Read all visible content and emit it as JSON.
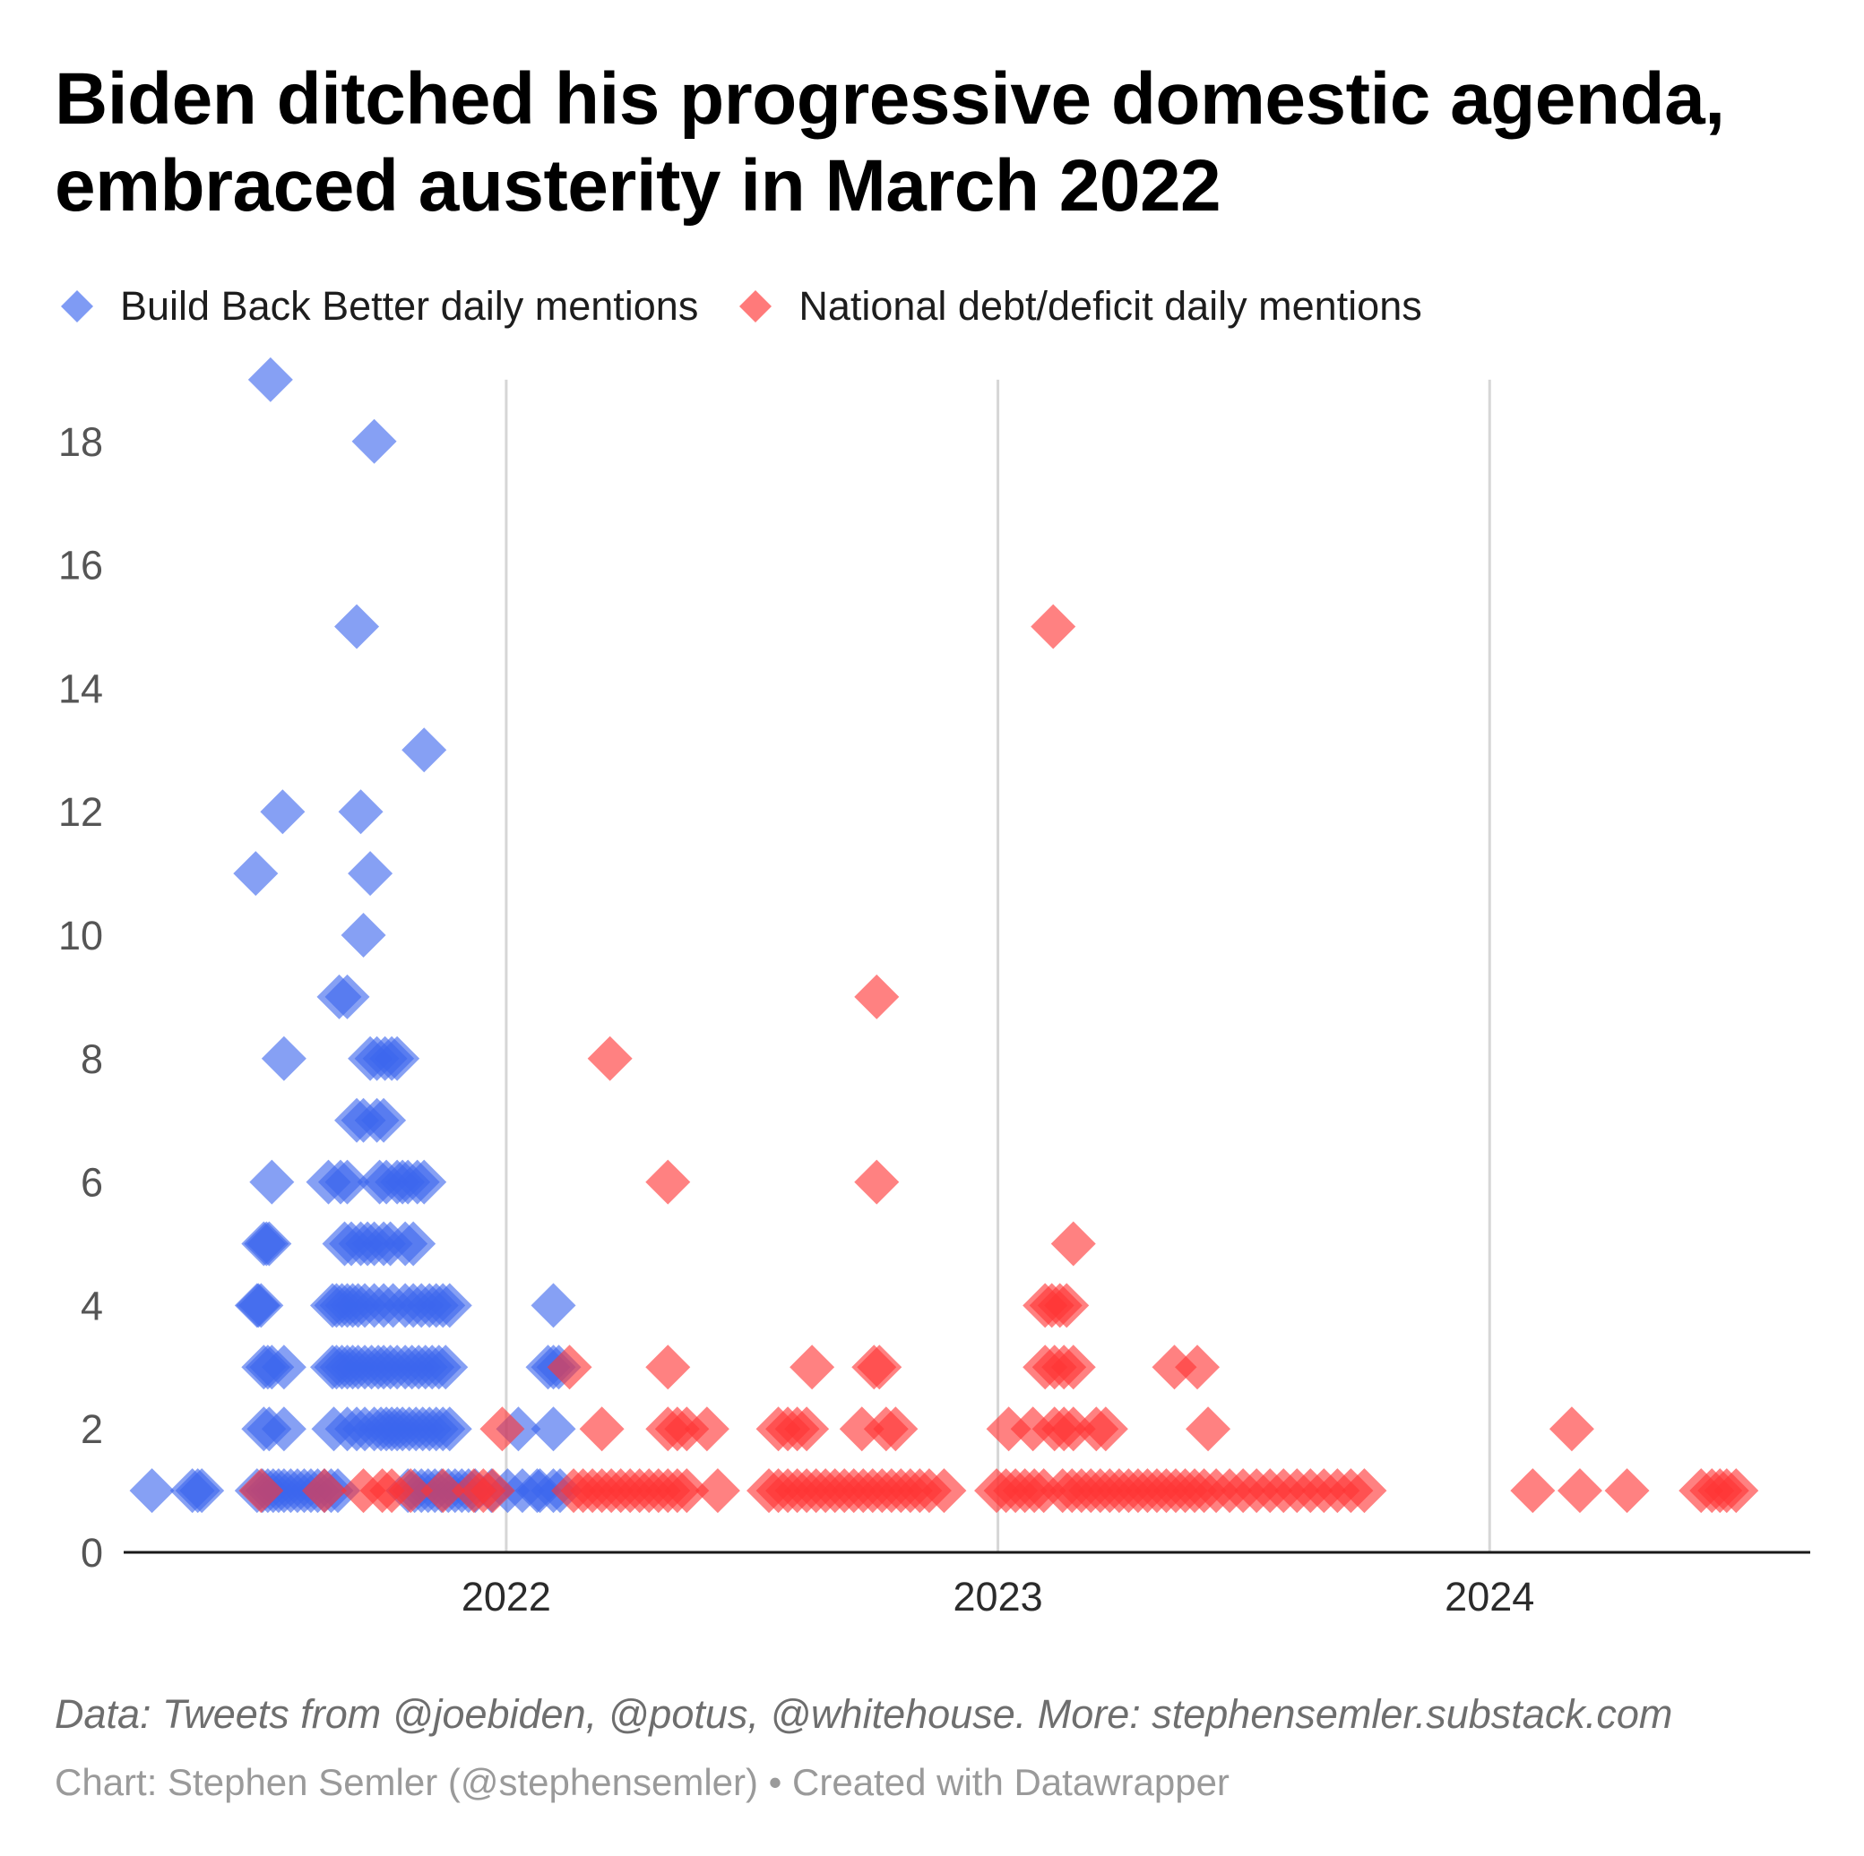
{
  "title": "Biden ditched his progressive domestic agenda, embraced austerity in March 2022",
  "legend": [
    {
      "label": "Build Back Better daily mentions",
      "color": "#3b66ee"
    },
    {
      "label": "National debt/deficit daily mentions",
      "color": "#ff3333"
    }
  ],
  "footer": {
    "source": "Data: Tweets from @joebiden, @potus, @whitehouse. More: stephensemler.substack.com",
    "credit": "Chart: Stephen Semler (@stephensemler) • Created with Datawrapper"
  },
  "chart_data": {
    "type": "scatter",
    "title": "Biden ditched his progressive domestic agenda, embraced austerity in March 2022",
    "xlabel": "",
    "ylabel": "",
    "x_type": "date",
    "xlim": [
      "2021-03-23",
      "2024-08-26"
    ],
    "ylim": [
      0,
      19
    ],
    "x_ticks": [
      "2022",
      "2023",
      "2024"
    ],
    "x_tick_dates": [
      "2022-01-01",
      "2023-01-01",
      "2024-01-01"
    ],
    "y_ticks": [
      "0",
      "2",
      "4",
      "6",
      "8",
      "10",
      "12",
      "14",
      "16",
      "18"
    ],
    "y_tick_values": [
      0,
      2,
      4,
      6,
      8,
      10,
      12,
      14,
      16,
      18
    ],
    "grid": "vertical lines at year boundaries",
    "legend_position": "top-left",
    "marker": "diamond",
    "series": [
      {
        "name": "Build Back Better daily mentions",
        "color": "#3b66ee",
        "points": [
          [
            "2021-04-13",
            1
          ],
          [
            "2021-05-13",
            1
          ],
          [
            "2021-05-17",
            1
          ],
          [
            "2021-05-20",
            1
          ],
          [
            "2021-06-29",
            11
          ],
          [
            "2021-06-30",
            4
          ],
          [
            "2021-07-01",
            4
          ],
          [
            "2021-07-03",
            4
          ],
          [
            "2021-07-05",
            5
          ],
          [
            "2021-07-07",
            5
          ],
          [
            "2021-07-09",
            5
          ],
          [
            "2021-07-05",
            3
          ],
          [
            "2021-07-08",
            3
          ],
          [
            "2021-07-11",
            3
          ],
          [
            "2021-07-05",
            2
          ],
          [
            "2021-07-09",
            2
          ],
          [
            "2021-07-10",
            19
          ],
          [
            "2021-07-11",
            6
          ],
          [
            "2021-06-30",
            1
          ],
          [
            "2021-07-04",
            1
          ],
          [
            "2021-07-08",
            1
          ],
          [
            "2021-07-12",
            1
          ],
          [
            "2021-07-16",
            1
          ],
          [
            "2021-07-20",
            1
          ],
          [
            "2021-07-19",
            12
          ],
          [
            "2021-07-20",
            3
          ],
          [
            "2021-07-20",
            2
          ],
          [
            "2021-07-20",
            8
          ],
          [
            "2021-07-25",
            1
          ],
          [
            "2021-07-30",
            1
          ],
          [
            "2021-08-04",
            1
          ],
          [
            "2021-08-09",
            1
          ],
          [
            "2021-08-14",
            1
          ],
          [
            "2021-08-19",
            1
          ],
          [
            "2021-08-24",
            1
          ],
          [
            "2021-08-29",
            1
          ],
          [
            "2021-08-22",
            6
          ],
          [
            "2021-08-25",
            4
          ],
          [
            "2021-08-28",
            4
          ],
          [
            "2021-08-25",
            3
          ],
          [
            "2021-08-28",
            3
          ],
          [
            "2021-08-26",
            2
          ],
          [
            "2021-08-30",
            9
          ],
          [
            "2021-09-05",
            9
          ],
          [
            "2021-08-31",
            6
          ],
          [
            "2021-09-05",
            6
          ],
          [
            "2021-09-03",
            5
          ],
          [
            "2021-09-08",
            5
          ],
          [
            "2021-09-01",
            4
          ],
          [
            "2021-09-05",
            4
          ],
          [
            "2021-09-09",
            4
          ],
          [
            "2021-09-13",
            4
          ],
          [
            "2021-09-01",
            3
          ],
          [
            "2021-09-05",
            3
          ],
          [
            "2021-09-09",
            3
          ],
          [
            "2021-09-13",
            3
          ],
          [
            "2021-09-05",
            2
          ],
          [
            "2021-09-12",
            2
          ],
          [
            "2021-09-12",
            15
          ],
          [
            "2021-09-12",
            7
          ],
          [
            "2021-09-17",
            7
          ],
          [
            "2021-09-15",
            12
          ],
          [
            "2021-09-17",
            10
          ],
          [
            "2021-09-22",
            11
          ],
          [
            "2021-09-15",
            5
          ],
          [
            "2021-09-20",
            5
          ],
          [
            "2021-09-25",
            5
          ],
          [
            "2021-09-18",
            4
          ],
          [
            "2021-09-25",
            4
          ],
          [
            "2021-09-18",
            3
          ],
          [
            "2021-09-23",
            3
          ],
          [
            "2021-09-28",
            3
          ],
          [
            "2021-09-18",
            2
          ],
          [
            "2021-09-25",
            2
          ],
          [
            "2021-09-22",
            8
          ],
          [
            "2021-09-27",
            8
          ],
          [
            "2021-09-25",
            18
          ],
          [
            "2021-09-27",
            7
          ],
          [
            "2021-10-02",
            7
          ],
          [
            "2021-09-29",
            6
          ],
          [
            "2021-10-04",
            6
          ],
          [
            "2021-10-02",
            5
          ],
          [
            "2021-10-07",
            5
          ],
          [
            "2021-10-02",
            4
          ],
          [
            "2021-10-09",
            4
          ],
          [
            "2021-10-02",
            3
          ],
          [
            "2021-10-07",
            3
          ],
          [
            "2021-10-12",
            3
          ],
          [
            "2021-09-30",
            2
          ],
          [
            "2021-10-04",
            2
          ],
          [
            "2021-10-08",
            2
          ],
          [
            "2021-10-12",
            2
          ],
          [
            "2021-10-03",
            8
          ],
          [
            "2021-10-08",
            8
          ],
          [
            "2021-10-12",
            8
          ],
          [
            "2021-10-12",
            6
          ],
          [
            "2021-10-16",
            6
          ],
          [
            "2021-10-20",
            6
          ],
          [
            "2021-10-18",
            5
          ],
          [
            "2021-10-24",
            5
          ],
          [
            "2021-10-18",
            4
          ],
          [
            "2021-10-24",
            4
          ],
          [
            "2021-10-30",
            4
          ],
          [
            "2021-10-18",
            3
          ],
          [
            "2021-10-23",
            3
          ],
          [
            "2021-10-28",
            3
          ],
          [
            "2021-11-02",
            3
          ],
          [
            "2021-10-16",
            2
          ],
          [
            "2021-10-21",
            2
          ],
          [
            "2021-10-26",
            2
          ],
          [
            "2021-10-31",
            2
          ],
          [
            "2021-10-20",
            1
          ],
          [
            "2021-10-25",
            1
          ],
          [
            "2021-10-30",
            1
          ],
          [
            "2021-11-04",
            1
          ],
          [
            "2021-11-09",
            1
          ],
          [
            "2021-11-14",
            1
          ],
          [
            "2021-10-27",
            6
          ],
          [
            "2021-11-01",
            6
          ],
          [
            "2021-11-01",
            13
          ],
          [
            "2021-11-05",
            4
          ],
          [
            "2021-11-10",
            4
          ],
          [
            "2021-11-07",
            3
          ],
          [
            "2021-11-12",
            3
          ],
          [
            "2021-11-05",
            2
          ],
          [
            "2021-11-10",
            2
          ],
          [
            "2021-11-15",
            2
          ],
          [
            "2021-11-19",
            1
          ],
          [
            "2021-11-24",
            1
          ],
          [
            "2021-11-29",
            1
          ],
          [
            "2021-12-04",
            1
          ],
          [
            "2021-12-09",
            1
          ],
          [
            "2021-11-15",
            4
          ],
          [
            "2021-11-20",
            4
          ],
          [
            "2021-11-17",
            3
          ],
          [
            "2021-11-20",
            2
          ],
          [
            "2021-12-21",
            1
          ],
          [
            "2022-01-02",
            1
          ],
          [
            "2022-01-13",
            1
          ],
          [
            "2022-01-24",
            1
          ],
          [
            "2022-01-10",
            2
          ],
          [
            "2022-02-05",
            2
          ],
          [
            "2022-01-26",
            1
          ],
          [
            "2022-02-05",
            1
          ],
          [
            "2022-02-05",
            4
          ],
          [
            "2022-02-01",
            3
          ],
          [
            "2022-02-05",
            3
          ],
          [
            "2022-02-09",
            3
          ],
          [
            "2022-02-10",
            1
          ]
        ]
      },
      {
        "name": "National debt/deficit daily mentions",
        "color": "#ff3333",
        "points": [
          [
            "2021-07-03",
            1
          ],
          [
            "2021-08-19",
            1
          ],
          [
            "2021-09-17",
            1
          ],
          [
            "2021-10-01",
            1
          ],
          [
            "2021-10-08",
            1
          ],
          [
            "2021-10-22",
            1
          ],
          [
            "2021-11-15",
            1
          ],
          [
            "2021-12-08",
            1
          ],
          [
            "2021-12-15",
            1
          ],
          [
            "2021-12-29",
            2
          ],
          [
            "2021-12-22",
            1
          ],
          [
            "2022-02-17",
            3
          ],
          [
            "2022-03-13",
            2
          ],
          [
            "2022-03-19",
            8
          ],
          [
            "2022-02-20",
            1
          ],
          [
            "2022-02-27",
            1
          ],
          [
            "2022-03-06",
            1
          ],
          [
            "2022-03-13",
            1
          ],
          [
            "2022-03-20",
            1
          ],
          [
            "2022-03-27",
            1
          ],
          [
            "2022-04-03",
            1
          ],
          [
            "2022-04-10",
            1
          ],
          [
            "2022-04-17",
            1
          ],
          [
            "2022-04-24",
            1
          ],
          [
            "2022-05-01",
            1
          ],
          [
            "2022-05-08",
            1
          ],
          [
            "2022-05-15",
            1
          ],
          [
            "2022-05-01",
            6
          ],
          [
            "2022-05-01",
            3
          ],
          [
            "2022-05-01",
            2
          ],
          [
            "2022-05-08",
            2
          ],
          [
            "2022-05-15",
            2
          ],
          [
            "2022-05-30",
            2
          ],
          [
            "2022-06-07",
            1
          ],
          [
            "2022-07-15",
            1
          ],
          [
            "2022-07-22",
            1
          ],
          [
            "2022-07-29",
            1
          ],
          [
            "2022-08-05",
            1
          ],
          [
            "2022-08-12",
            1
          ],
          [
            "2022-08-19",
            1
          ],
          [
            "2022-08-26",
            1
          ],
          [
            "2022-09-02",
            1
          ],
          [
            "2022-09-09",
            1
          ],
          [
            "2022-09-16",
            1
          ],
          [
            "2022-09-23",
            1
          ],
          [
            "2022-09-30",
            1
          ],
          [
            "2022-10-07",
            1
          ],
          [
            "2022-10-14",
            1
          ],
          [
            "2022-10-21",
            1
          ],
          [
            "2022-10-28",
            1
          ],
          [
            "2022-11-04",
            1
          ],
          [
            "2022-11-11",
            1
          ],
          [
            "2022-11-22",
            1
          ],
          [
            "2022-07-22",
            2
          ],
          [
            "2022-07-29",
            2
          ],
          [
            "2022-08-05",
            2
          ],
          [
            "2022-08-12",
            2
          ],
          [
            "2022-08-16",
            3
          ],
          [
            "2022-09-22",
            2
          ],
          [
            "2022-10-01",
            3
          ],
          [
            "2022-10-05",
            3
          ],
          [
            "2022-10-03",
            9
          ],
          [
            "2022-10-03",
            6
          ],
          [
            "2022-10-10",
            2
          ],
          [
            "2022-10-17",
            2
          ],
          [
            "2022-12-31",
            1
          ],
          [
            "2023-01-07",
            1
          ],
          [
            "2023-01-14",
            1
          ],
          [
            "2023-01-21",
            1
          ],
          [
            "2023-01-28",
            1
          ],
          [
            "2023-02-04",
            1
          ],
          [
            "2023-01-09",
            2
          ],
          [
            "2023-01-27",
            2
          ],
          [
            "2023-02-11",
            15
          ],
          [
            "2023-02-05",
            4
          ],
          [
            "2023-02-10",
            4
          ],
          [
            "2023-02-16",
            4
          ],
          [
            "2023-02-21",
            4
          ],
          [
            "2023-02-05",
            3
          ],
          [
            "2023-02-12",
            3
          ],
          [
            "2023-02-19",
            3
          ],
          [
            "2023-02-26",
            3
          ],
          [
            "2023-02-12",
            2
          ],
          [
            "2023-02-19",
            2
          ],
          [
            "2023-02-26",
            2
          ],
          [
            "2023-02-26",
            5
          ],
          [
            "2023-02-18",
            1
          ],
          [
            "2023-02-25",
            1
          ],
          [
            "2023-03-04",
            1
          ],
          [
            "2023-03-11",
            1
          ],
          [
            "2023-03-18",
            1
          ],
          [
            "2023-03-25",
            1
          ],
          [
            "2023-04-01",
            1
          ],
          [
            "2023-04-08",
            1
          ],
          [
            "2023-04-15",
            1
          ],
          [
            "2023-04-22",
            1
          ],
          [
            "2023-04-29",
            1
          ],
          [
            "2023-05-06",
            1
          ],
          [
            "2023-05-13",
            1
          ],
          [
            "2023-05-20",
            1
          ],
          [
            "2023-05-27",
            1
          ],
          [
            "2023-06-03",
            1
          ],
          [
            "2023-03-15",
            2
          ],
          [
            "2023-03-22",
            2
          ],
          [
            "2023-05-12",
            3
          ],
          [
            "2023-05-29",
            3
          ],
          [
            "2023-06-06",
            2
          ],
          [
            "2023-06-12",
            1
          ],
          [
            "2023-06-22",
            1
          ],
          [
            "2023-07-02",
            1
          ],
          [
            "2023-07-12",
            1
          ],
          [
            "2023-07-22",
            1
          ],
          [
            "2023-08-01",
            1
          ],
          [
            "2023-08-11",
            1
          ],
          [
            "2023-08-21",
            1
          ],
          [
            "2023-08-31",
            1
          ],
          [
            "2023-09-10",
            1
          ],
          [
            "2023-09-20",
            1
          ],
          [
            "2023-09-30",
            1
          ],
          [
            "2024-02-02",
            1
          ],
          [
            "2024-03-08",
            1
          ],
          [
            "2024-03-02",
            2
          ],
          [
            "2024-04-12",
            1
          ],
          [
            "2024-06-06",
            1
          ],
          [
            "2024-06-14",
            1
          ],
          [
            "2024-06-20",
            1
          ],
          [
            "2024-06-25",
            1
          ],
          [
            "2024-07-02",
            1
          ]
        ]
      }
    ]
  }
}
